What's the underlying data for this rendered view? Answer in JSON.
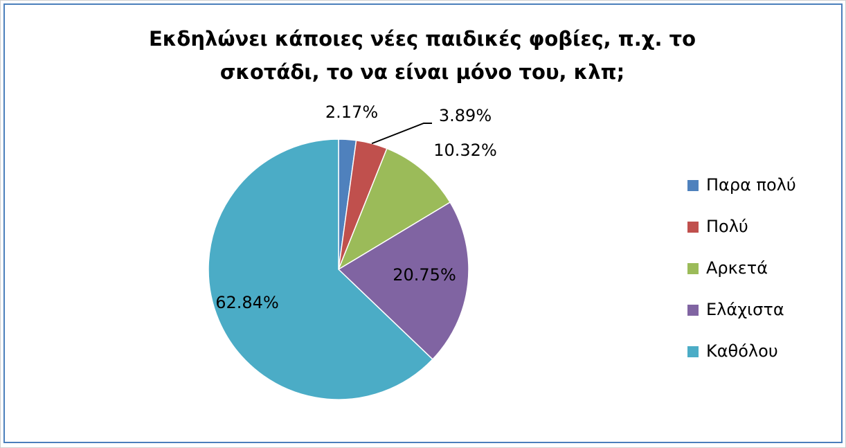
{
  "chart_data": {
    "type": "pie",
    "title": "Εκδηλώνει κάποιες νέες παιδικές φοβίες, π.χ. το σκοτάδι, το να είναι μόνο του, κλπ;",
    "categories": [
      "Παρα πολύ",
      "Πολύ",
      "Αρκετά",
      "Ελάχιστα",
      "Καθόλου"
    ],
    "values": [
      2.17,
      3.89,
      10.32,
      20.75,
      62.84
    ],
    "value_labels": [
      "2.17%",
      "3.89%",
      "10.32%",
      "20.75%",
      "62.84%"
    ],
    "colors": [
      "#4f81bd",
      "#c0504d",
      "#9bbb59",
      "#8064a2",
      "#4bacc6"
    ],
    "legend": "right"
  }
}
